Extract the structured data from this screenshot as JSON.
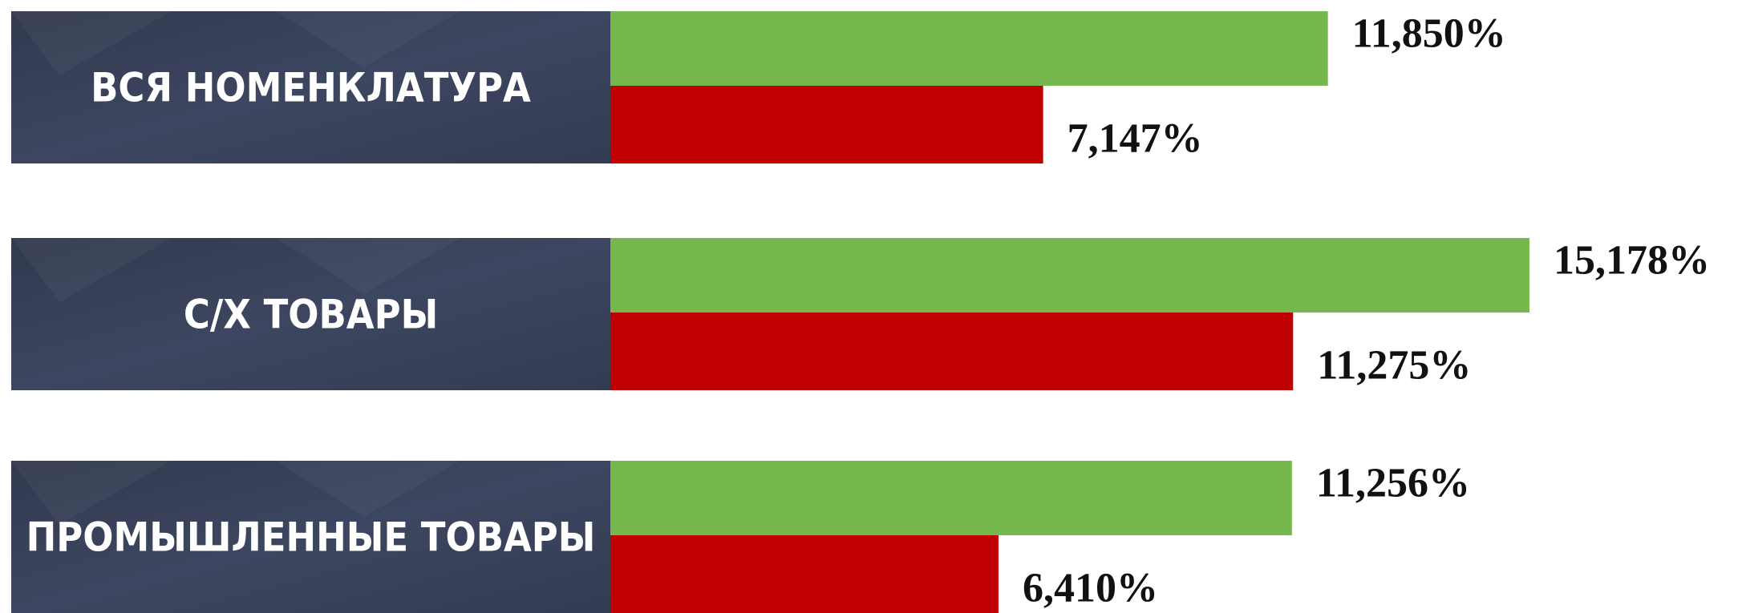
{
  "chart_data": {
    "type": "bar",
    "orientation": "horizontal",
    "categories": [
      "ВСЯ НОМЕНКЛАТУРА",
      "С/Х ТОВАРЫ",
      "ПРОМЫШЛЕННЫЕ ТОВАРЫ"
    ],
    "series": [
      {
        "color": "#76b84e",
        "values": [
          11.85,
          15.178,
          11.256
        ],
        "value_labels": [
          "11,850%",
          "15,178%",
          "11,256%"
        ]
      },
      {
        "color": "#c00000",
        "values": [
          7.147,
          11.275,
          6.41
        ],
        "value_labels": [
          "7,147%",
          "11,275%",
          "6,410%"
        ]
      }
    ]
  }
}
